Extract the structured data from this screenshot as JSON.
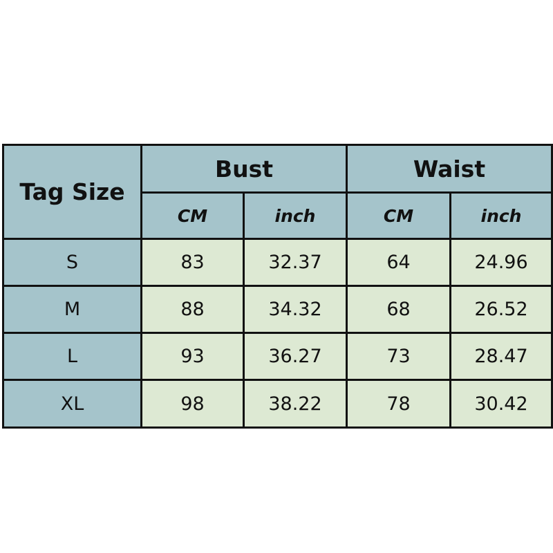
{
  "header": {
    "tag_size": "Tag Size",
    "groups": [
      "Bust",
      "Waist"
    ],
    "units": [
      "CM",
      "inch",
      "CM",
      "inch"
    ]
  },
  "rows": [
    {
      "size": "S",
      "values": [
        "83",
        "32.37",
        "64",
        "24.96"
      ]
    },
    {
      "size": "M",
      "values": [
        "88",
        "34.32",
        "68",
        "26.52"
      ]
    },
    {
      "size": "L",
      "values": [
        "93",
        "36.27",
        "73",
        "28.47"
      ]
    },
    {
      "size": "XL",
      "values": [
        "98",
        "38.22",
        "78",
        "30.42"
      ]
    }
  ],
  "colors": {
    "header_bg": "#a5c4cb",
    "cell_bg": "#dde9d3",
    "border": "#111111"
  }
}
